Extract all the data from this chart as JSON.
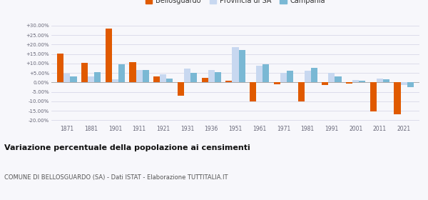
{
  "years": [
    1871,
    1881,
    1901,
    1911,
    1921,
    1931,
    1936,
    1951,
    1961,
    1971,
    1981,
    1991,
    2001,
    2011,
    2021
  ],
  "bellosguardo": [
    15.2,
    10.3,
    28.5,
    10.8,
    3.2,
    -7.0,
    2.5,
    1.0,
    -10.2,
    -1.0,
    -10.0,
    -1.2,
    -0.8,
    -15.5,
    -17.0
  ],
  "provincia_sa": [
    4.8,
    3.2,
    1.8,
    6.5,
    4.2,
    7.5,
    6.5,
    18.5,
    9.0,
    5.0,
    6.0,
    5.0,
    1.2,
    2.0,
    -1.5
  ],
  "campania": [
    3.2,
    5.5,
    9.5,
    6.5,
    2.2,
    5.0,
    5.5,
    17.3,
    9.5,
    6.0,
    7.8,
    3.0,
    1.0,
    1.5,
    -2.5
  ],
  "color_bellosguardo": "#e05a00",
  "color_provincia": "#c8d8f0",
  "color_campania": "#7ab8d4",
  "title_main": "Variazione percentuale della popolazione ai censimenti",
  "title_sub": "COMUNE DI BELLOSGUARDO (SA) - Dati ISTAT - Elaborazione TUTTITALIA.IT",
  "yticks": [
    -20,
    -15,
    -10,
    -5,
    0,
    5,
    10,
    15,
    20,
    25,
    30
  ],
  "ylim": [
    -22,
    33
  ],
  "background_color": "#f7f7fb",
  "grid_color": "#d8d8e8"
}
